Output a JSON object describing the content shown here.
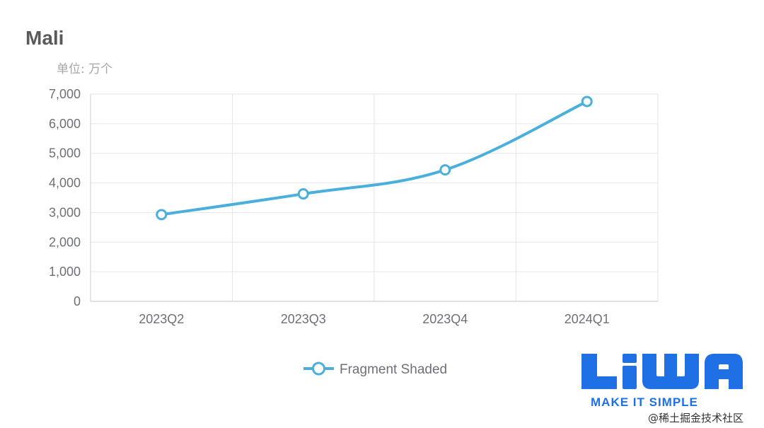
{
  "chart_data": {
    "type": "line",
    "title": "Mali",
    "unit_label": "单位: 万个",
    "categories": [
      "2023Q2",
      "2023Q3",
      "2023Q4",
      "2024Q1"
    ],
    "series": [
      {
        "name": "Fragment Shaded",
        "values": [
          2930,
          3630,
          4440,
          6750
        ],
        "color": "#4aafdc"
      }
    ],
    "ylim": [
      0,
      7000
    ],
    "yticks": [
      0,
      1000,
      2000,
      3000,
      4000,
      5000,
      6000,
      7000
    ],
    "ytick_labels": [
      "0",
      "1,000",
      "2,000",
      "3,000",
      "4,000",
      "5,000",
      "6,000",
      "7,000"
    ],
    "grid": true,
    "legend_position": "bottom-center"
  },
  "logo": {
    "wordmark": "LiWA",
    "tagline": "MAKE IT SIMPLE",
    "color": "#1f6fe5"
  },
  "watermark": "@稀土掘金技术社区"
}
